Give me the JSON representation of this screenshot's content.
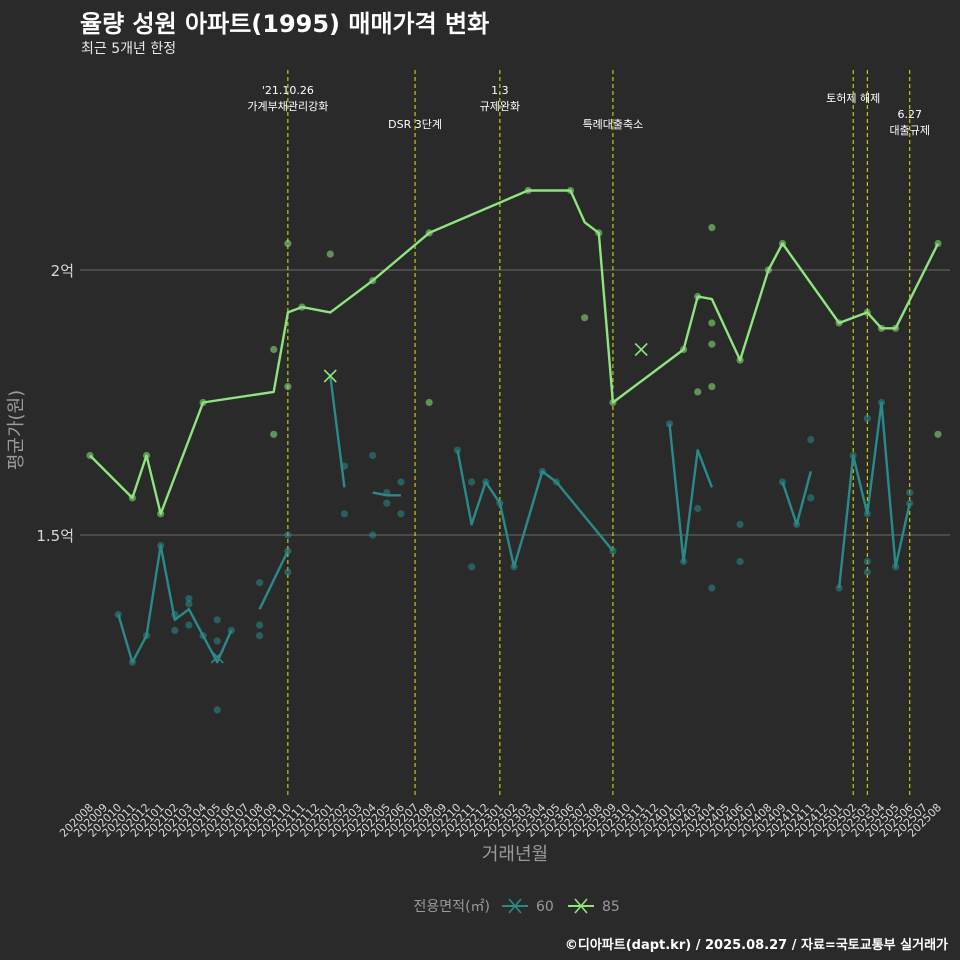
{
  "header": {
    "title": "율량 성원 아파트(1995) 매매가격 변화",
    "subtitle": "최근 5개년 한정"
  },
  "caption": "©디아파트(dapt.kr) / 2025.08.27 / 자료=국토교통부 실거래가",
  "colors": {
    "background": "#2b2a2b",
    "series_60": "#2a8a8a",
    "series_85": "#8ee47e",
    "vline": "#e6e600",
    "grid": "#5e5e5e"
  },
  "chart_data": {
    "type": "line",
    "xlabel": "거래년월",
    "ylabel": "평균가(원)",
    "ylim": [
      0.98,
      2.5
    ],
    "y_unit": "억",
    "y_ticks": [
      {
        "value": 1.5,
        "label": "1.5억"
      },
      {
        "value": 2.0,
        "label": "2억"
      }
    ],
    "x_categories": [
      "202008",
      "202009",
      "202010",
      "202011",
      "202012",
      "202101",
      "202102",
      "202103",
      "202104",
      "202105",
      "202106",
      "202107",
      "202108",
      "202109",
      "202110",
      "202111",
      "202112",
      "202201",
      "202202",
      "202203",
      "202204",
      "202205",
      "202206",
      "202207",
      "202208",
      "202209",
      "202210",
      "202211",
      "202212",
      "202301",
      "202302",
      "202303",
      "202304",
      "202305",
      "202306",
      "202307",
      "202308",
      "202309",
      "202310",
      "202311",
      "202312",
      "202401",
      "202402",
      "202403",
      "202404",
      "202405",
      "202406",
      "202407",
      "202408",
      "202409",
      "202410",
      "202411",
      "202412",
      "202501",
      "202502",
      "202503",
      "202504",
      "202505",
      "202506",
      "202507",
      "202508"
    ],
    "legend": {
      "title": "전용면적(㎡)",
      "position": "bottom"
    },
    "grid": true,
    "events": [
      {
        "x": "202110",
        "label": "'21.10.26\n가계부채관리강화",
        "row": 1
      },
      {
        "x": "202207",
        "label": "DSR 3단계",
        "row": 2
      },
      {
        "x": "202301",
        "label": "1.3\n규제완화",
        "row": 1
      },
      {
        "x": "202309",
        "label": "특례대출축소",
        "row": 2
      },
      {
        "x": "202502",
        "label": "토허제 해제",
        "row": 1
      },
      {
        "x": "202503",
        "label": "",
        "row": 1
      },
      {
        "x": "202506",
        "label": "6.27\n대출규제",
        "row": 3
      }
    ],
    "series": [
      {
        "name": "60",
        "line": [
          [
            [
              "202010",
              1.35
            ],
            [
              "202011",
              1.26
            ],
            [
              "202012",
              1.31
            ],
            [
              "202101",
              1.48
            ],
            [
              "202102",
              1.34
            ],
            [
              "202103",
              1.36
            ],
            [
              "202104",
              1.31
            ],
            [
              "202105",
              1.26
            ],
            [
              "202106",
              1.32
            ]
          ],
          [
            [
              "202108",
              1.36
            ],
            [
              "202110",
              1.47
            ]
          ],
          [
            [
              "202201",
              1.8
            ],
            [
              "202202",
              1.59
            ]
          ],
          [
            [
              "202204",
              1.58
            ],
            [
              "202205",
              1.575
            ],
            [
              "202206",
              1.575
            ]
          ],
          [
            [
              "202210",
              1.66
            ],
            [
              "202211",
              1.52
            ],
            [
              "202212",
              1.6
            ],
            [
              "202301",
              1.56
            ],
            [
              "202302",
              1.44
            ],
            [
              "202304",
              1.62
            ],
            [
              "202305",
              1.6
            ],
            [
              "202309",
              1.47
            ]
          ],
          [
            [
              "202401",
              1.71
            ],
            [
              "202402",
              1.45
            ],
            [
              "202403",
              1.66
            ],
            [
              "202404",
              1.59
            ]
          ],
          [
            [
              "202409",
              1.6
            ],
            [
              "202410",
              1.52
            ],
            [
              "202411",
              1.62
            ]
          ],
          [
            [
              "202501",
              1.4
            ],
            [
              "202502",
              1.65
            ],
            [
              "202503",
              1.54
            ],
            [
              "202504",
              1.75
            ],
            [
              "202505",
              1.44
            ],
            [
              "202506",
              1.56
            ]
          ]
        ],
        "points": [
          [
            "202010",
            1.35
          ],
          [
            "202011",
            1.26
          ],
          [
            "202012",
            1.31
          ],
          [
            "202101",
            1.48
          ],
          [
            "202102",
            1.35
          ],
          [
            "202102",
            1.32
          ],
          [
            "202103",
            1.37
          ],
          [
            "202103",
            1.38
          ],
          [
            "202103",
            1.33
          ],
          [
            "202104",
            1.31
          ],
          [
            "202105",
            1.34
          ],
          [
            "202105",
            1.3
          ],
          [
            "202105",
            1.17
          ],
          [
            "202106",
            1.32
          ],
          [
            "202108",
            1.41
          ],
          [
            "202108",
            1.33
          ],
          [
            "202108",
            1.31
          ],
          [
            "202110",
            1.5
          ],
          [
            "202110",
            1.47
          ],
          [
            "202110",
            1.43
          ],
          [
            "202202",
            1.63
          ],
          [
            "202202",
            1.54
          ],
          [
            "202204",
            1.65
          ],
          [
            "202204",
            1.5
          ],
          [
            "202205",
            1.58
          ],
          [
            "202205",
            1.56
          ],
          [
            "202206",
            1.6
          ],
          [
            "202206",
            1.54
          ],
          [
            "202210",
            1.66
          ],
          [
            "202211",
            1.6
          ],
          [
            "202211",
            1.44
          ],
          [
            "202212",
            1.6
          ],
          [
            "202301",
            1.56
          ],
          [
            "202302",
            1.44
          ],
          [
            "202304",
            1.62
          ],
          [
            "202305",
            1.6
          ],
          [
            "202309",
            1.47
          ],
          [
            "202401",
            1.71
          ],
          [
            "202402",
            1.45
          ],
          [
            "202403",
            1.55
          ],
          [
            "202404",
            1.4
          ],
          [
            "202406",
            1.52
          ],
          [
            "202406",
            1.45
          ],
          [
            "202409",
            1.6
          ],
          [
            "202410",
            1.52
          ],
          [
            "202411",
            1.68
          ],
          [
            "202411",
            1.57
          ],
          [
            "202501",
            1.4
          ],
          [
            "202502",
            1.65
          ],
          [
            "202503",
            1.72
          ],
          [
            "202503",
            1.54
          ],
          [
            "202503",
            1.45
          ],
          [
            "202503",
            1.43
          ],
          [
            "202504",
            1.75
          ],
          [
            "202505",
            1.44
          ],
          [
            "202506",
            1.58
          ],
          [
            "202506",
            1.56
          ]
        ],
        "crosses": [
          [
            "202105",
            1.27
          ]
        ]
      },
      {
        "name": "85",
        "line": [
          [
            [
              "202008",
              1.65
            ],
            [
              "202011",
              1.57
            ],
            [
              "202012",
              1.65
            ],
            [
              "202101",
              1.54
            ],
            [
              "202104",
              1.75
            ],
            [
              "202109",
              1.77
            ],
            [
              "202110",
              1.92
            ],
            [
              "202111",
              1.93
            ],
            [
              "202201",
              1.92
            ],
            [
              "202204",
              1.98
            ],
            [
              "202208",
              2.07
            ],
            [
              "202303",
              2.15
            ],
            [
              "202306",
              2.15
            ],
            [
              "202307",
              2.09
            ],
            [
              "202308",
              2.07
            ],
            [
              "202309",
              1.75
            ],
            [
              "202402",
              1.85
            ],
            [
              "202403",
              1.95
            ],
            [
              "202404",
              1.945
            ],
            [
              "202406",
              1.83
            ],
            [
              "202408",
              2.0
            ],
            [
              "202409",
              2.05
            ],
            [
              "202501",
              1.9
            ],
            [
              "202503",
              1.92
            ],
            [
              "202504",
              1.89
            ],
            [
              "202505",
              1.89
            ],
            [
              "202508",
              2.05
            ]
          ]
        ],
        "points": [
          [
            "202008",
            1.65
          ],
          [
            "202011",
            1.57
          ],
          [
            "202012",
            1.65
          ],
          [
            "202101",
            1.54
          ],
          [
            "202104",
            1.75
          ],
          [
            "202109",
            1.85
          ],
          [
            "202109",
            1.69
          ],
          [
            "202110",
            2.05
          ],
          [
            "202110",
            1.78
          ],
          [
            "202111",
            1.93
          ],
          [
            "202201",
            2.03
          ],
          [
            "202204",
            1.98
          ],
          [
            "202208",
            2.07
          ],
          [
            "202208",
            1.75
          ],
          [
            "202303",
            2.15
          ],
          [
            "202306",
            2.15
          ],
          [
            "202307",
            1.91
          ],
          [
            "202308",
            2.07
          ],
          [
            "202309",
            1.75
          ],
          [
            "202402",
            1.85
          ],
          [
            "202403",
            1.95
          ],
          [
            "202404",
            2.08
          ],
          [
            "202404",
            1.9
          ],
          [
            "202404",
            1.86
          ],
          [
            "202403",
            1.77
          ],
          [
            "202404",
            1.78
          ],
          [
            "202406",
            1.83
          ],
          [
            "202408",
            2.0
          ],
          [
            "202409",
            2.05
          ],
          [
            "202501",
            1.9
          ],
          [
            "202503",
            1.92
          ],
          [
            "202504",
            1.89
          ],
          [
            "202505",
            1.89
          ],
          [
            "202508",
            2.05
          ],
          [
            "202508",
            1.69
          ]
        ],
        "crosses": [
          [
            "202201",
            1.8
          ],
          [
            "202311",
            1.85
          ]
        ]
      }
    ]
  }
}
